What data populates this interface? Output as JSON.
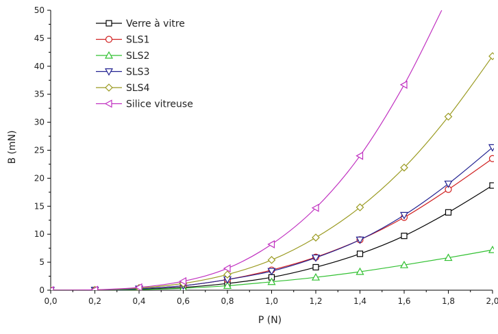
{
  "chart_data": {
    "type": "line",
    "xlabel": "P (N)",
    "ylabel": "B (mN)",
    "xlim": [
      0.0,
      2.0
    ],
    "ylim": [
      0,
      50
    ],
    "x_ticks": [
      "0,0",
      "0,2",
      "0,4",
      "0,6",
      "0,8",
      "1,0",
      "1,2",
      "1,4",
      "1,6",
      "1,8",
      "2,0"
    ],
    "y_ticks": [
      "0",
      "5",
      "10",
      "15",
      "20",
      "25",
      "30",
      "35",
      "40",
      "45",
      "50"
    ],
    "grid": false,
    "legend_position": "top-left",
    "series": [
      {
        "name": "Verre à vitre",
        "color": "#000000",
        "marker": "square",
        "x": [
          0.0,
          0.2,
          0.4,
          0.6,
          0.8,
          1.0,
          1.2,
          1.4,
          1.6,
          1.8,
          2.0
        ],
        "y": [
          0,
          0.02,
          0.15,
          0.5,
          1.2,
          2.3,
          4.1,
          6.5,
          9.7,
          13.9,
          18.7
        ]
      },
      {
        "name": "SLS1",
        "color": "#d02020",
        "marker": "circle",
        "x": [
          0.0,
          0.2,
          0.4,
          0.6,
          0.8,
          1.0,
          1.2,
          1.4,
          1.6,
          1.8,
          2.0
        ],
        "y": [
          0,
          0.03,
          0.25,
          0.8,
          1.9,
          3.6,
          5.9,
          9.0,
          13.0,
          18.0,
          23.5
        ]
      },
      {
        "name": "SLS2",
        "color": "#30c030",
        "marker": "triangle-up",
        "x": [
          0.0,
          0.2,
          0.4,
          0.6,
          0.8,
          1.0,
          1.2,
          1.4,
          1.6,
          1.8,
          2.0
        ],
        "y": [
          0,
          0.02,
          0.12,
          0.35,
          0.8,
          1.5,
          2.3,
          3.3,
          4.5,
          5.8,
          7.2
        ]
      },
      {
        "name": "SLS3",
        "color": "#202090",
        "marker": "triangle-down",
        "x": [
          0.0,
          0.2,
          0.4,
          0.6,
          0.8,
          1.0,
          1.2,
          1.4,
          1.6,
          1.8,
          2.0
        ],
        "y": [
          0,
          0.03,
          0.25,
          0.8,
          1.9,
          3.4,
          5.8,
          9.0,
          13.4,
          19.0,
          25.5
        ]
      },
      {
        "name": "SLS4",
        "color": "#9a9a20",
        "marker": "diamond",
        "x": [
          0.0,
          0.2,
          0.4,
          0.6,
          0.8,
          1.0,
          1.2,
          1.4,
          1.6,
          1.8,
          2.0
        ],
        "y": [
          0,
          0.05,
          0.4,
          1.2,
          2.8,
          5.4,
          9.4,
          14.8,
          21.9,
          31.0,
          41.8
        ]
      },
      {
        "name": "Silice vitreuse",
        "color": "#c030c0",
        "marker": "triangle-left",
        "x": [
          0.0,
          0.2,
          0.4,
          0.6,
          0.8,
          1.0,
          1.2,
          1.4,
          1.6,
          1.77
        ],
        "y": [
          0,
          0.08,
          0.5,
          1.6,
          3.9,
          8.2,
          14.7,
          24.0,
          36.7,
          50
        ]
      }
    ]
  }
}
